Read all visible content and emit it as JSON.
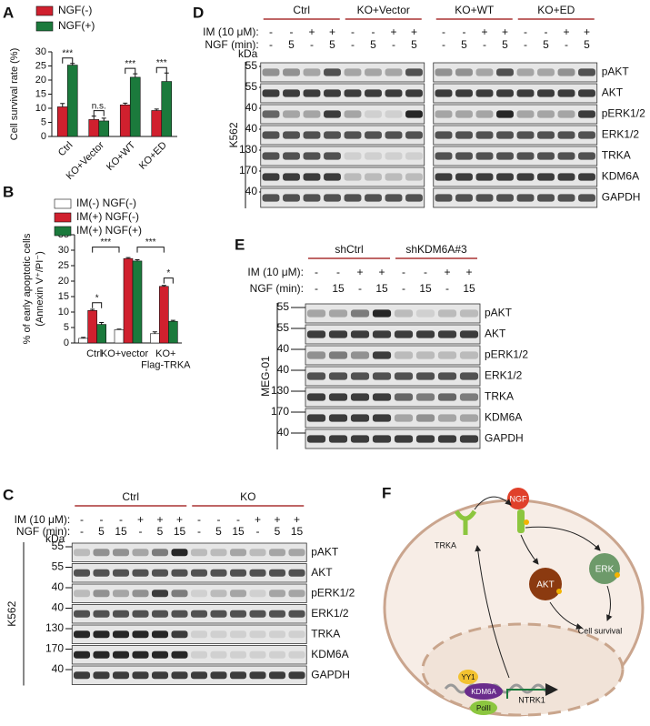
{
  "chart_data": [
    {
      "type": "bar",
      "letter": "A",
      "ylabel": "Cell survival rate (%)",
      "categories": [
        "Ctrl",
        "KO+Vector",
        "KO+WT",
        "KO+ED"
      ],
      "series": [
        {
          "name": "NGF(-)",
          "color": "#d0202e",
          "values": [
            10.5,
            6,
            11.2,
            9.2
          ],
          "errors": [
            1.2,
            1.2,
            0.6,
            0.5
          ]
        },
        {
          "name": "NGF(+)",
          "color": "#1b7a3c",
          "values": [
            25.3,
            5.5,
            21,
            19.5
          ],
          "errors": [
            0.6,
            1,
            1.2,
            3
          ]
        }
      ],
      "ylim": [
        0,
        30
      ],
      "yticks": [
        0,
        5,
        10,
        15,
        20,
        25,
        30
      ],
      "significance": [
        "***",
        "n.s.",
        "***",
        "***"
      ]
    },
    {
      "type": "bar",
      "letter": "B",
      "ylabel": [
        "% of early apoptotic cells",
        "(Annexin V⁺/PI⁻)"
      ],
      "categories": [
        "Ctrl",
        "KO+vector",
        "KO+\nFlag-TRKA"
      ],
      "series": [
        {
          "name": "IM(-) NGF(-)",
          "color": "#ffffff",
          "values": [
            1.5,
            4.3,
            3
          ],
          "errors": [
            0.3,
            0.2,
            0.6
          ]
        },
        {
          "name": "IM(+) NGF(-)",
          "color": "#d0202e",
          "values": [
            10.5,
            27.3,
            18.3
          ],
          "errors": [
            0.4,
            0.3,
            0.3
          ]
        },
        {
          "name": "IM(+) NGF(+)",
          "color": "#1b7a3c",
          "values": [
            6,
            26.5,
            7
          ],
          "errors": [
            0.6,
            0.4,
            0.3
          ]
        }
      ],
      "ylim": [
        0,
        35
      ],
      "yticks": [
        0,
        5,
        10,
        15,
        20,
        25,
        30,
        35
      ],
      "significance": [
        "*",
        "***",
        "***",
        "*"
      ]
    }
  ],
  "panel_d": {
    "letter": "D",
    "cell_line": "K562",
    "kda": "kDa",
    "groups": [
      "Ctrl",
      "KO+Vector",
      "KO+WT",
      "KO+ED"
    ],
    "treatments": [
      {
        "label": "IM (10 μM):",
        "values": [
          "-",
          "-",
          "+",
          "+",
          "-",
          "-",
          "+",
          "+",
          "-",
          "-",
          "+",
          "+",
          "-",
          "-",
          "+",
          "+"
        ]
      },
      {
        "label": "NGF (min):",
        "values": [
          "-",
          5,
          "-",
          5,
          "-",
          5,
          "-",
          5,
          "-",
          5,
          "-",
          5,
          "-",
          5,
          "-",
          5
        ]
      }
    ],
    "rows": [
      {
        "protein": "pAKT",
        "marker": 55
      },
      {
        "protein": "AKT",
        "marker": 55
      },
      {
        "protein": "pERK1/2",
        "marker": 40
      },
      {
        "protein": "ERK1/2",
        "marker": 40
      },
      {
        "protein": "TRKA",
        "marker": 130
      },
      {
        "protein": "KDM6A",
        "marker": 170
      },
      {
        "protein": "GAPDH",
        "marker": 40
      }
    ]
  },
  "panel_e": {
    "letter": "E",
    "cell_line": "MEG-01",
    "groups": [
      "shCtrl",
      "shKDM6A#3"
    ],
    "treatments": [
      {
        "label": "IM (10 μM):",
        "values": [
          "-",
          "-",
          "+",
          "+",
          "-",
          "-",
          "+",
          "+"
        ]
      },
      {
        "label": "NGF (min):",
        "values": [
          "-",
          15,
          "-",
          15,
          "-",
          15,
          "-",
          15
        ]
      }
    ],
    "rows": [
      {
        "protein": "pAKT",
        "marker": 55
      },
      {
        "protein": "AKT",
        "marker": 55
      },
      {
        "protein": "pERK1/2",
        "marker": 40
      },
      {
        "protein": "ERK1/2",
        "marker": 40
      },
      {
        "protein": "TRKA",
        "marker": 130
      },
      {
        "protein": "KDM6A",
        "marker": 170
      },
      {
        "protein": "GAPDH",
        "marker": 40
      }
    ]
  },
  "panel_c": {
    "letter": "C",
    "cell_line": "K562",
    "kda": "kDa",
    "groups": [
      "Ctrl",
      "KO"
    ],
    "treatments": [
      {
        "label": "IM (10 μM):",
        "values": [
          "-",
          "-",
          "-",
          "+",
          "+",
          "+",
          "-",
          "-",
          "-",
          "+",
          "+",
          "+"
        ]
      },
      {
        "label": "NGF (min):",
        "values": [
          "-",
          5,
          15,
          "-",
          5,
          15,
          "-",
          5,
          15,
          "-",
          5,
          15
        ]
      }
    ],
    "rows": [
      {
        "protein": "pAKT",
        "marker": 55
      },
      {
        "protein": "AKT",
        "marker": 55
      },
      {
        "protein": "pERK1/2",
        "marker": 40
      },
      {
        "protein": "ERK1/2",
        "marker": 40
      },
      {
        "protein": "TRKA",
        "marker": 130
      },
      {
        "protein": "KDM6A",
        "marker": 170
      },
      {
        "protein": "GAPDH",
        "marker": 40
      }
    ]
  },
  "panel_f": {
    "letter": "F",
    "ngf": "NGF",
    "trka": "TRKA",
    "akt": "AKT",
    "erk": "ERK",
    "survival": "Cell survival",
    "yy1": "YY1",
    "kdm6a": "KDM6A",
    "pol2": "PolII",
    "ntrk1": "NTRK1"
  }
}
